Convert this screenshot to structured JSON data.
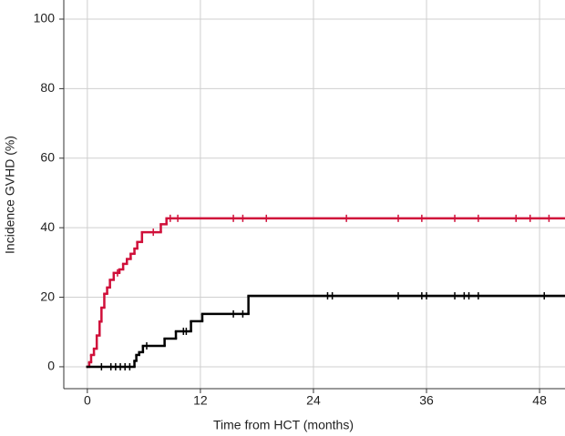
{
  "chart_data": {
    "type": "step",
    "x_label": "Time from HCT (months)",
    "y_label": "Incidence GVHD (%)",
    "xlim": [
      -2.5,
      50.7
    ],
    "ylim": [
      -6.3,
      105.5
    ],
    "xticks": [
      0,
      12,
      24,
      36,
      48
    ],
    "yticks": [
      0,
      20,
      40,
      60,
      80,
      100
    ],
    "grid": true,
    "series": [
      {
        "color": "#d0103a",
        "x": [
          0,
          0.2,
          0.4,
          0.7,
          1.0,
          1.3,
          1.5,
          1.8,
          2.1,
          2.4,
          2.8,
          3.4,
          3.8,
          4.2,
          4.6,
          5.0,
          5.3,
          5.8,
          7.8,
          8.4,
          50.7
        ],
        "values": [
          0,
          1.3,
          3.4,
          5.2,
          9,
          13,
          17,
          21,
          22.8,
          25,
          27,
          28,
          29.6,
          31,
          32.5,
          34,
          35.9,
          38.7,
          41,
          42.7,
          42.7
        ],
        "censored": {
          "x": [
            3.2,
            7.0,
            8.8,
            9.6,
            15.5,
            16.5,
            19,
            27.5,
            33,
            35.5,
            39,
            41.5,
            45.5,
            47,
            49
          ],
          "y": [
            27,
            38.7,
            42.7,
            42.7,
            42.7,
            42.7,
            42.7,
            42.7,
            42.7,
            42.7,
            42.7,
            42.7,
            42.7,
            42.7,
            42.7
          ]
        }
      },
      {
        "color": "#000000",
        "x": [
          0,
          5.0,
          5.2,
          5.5,
          5.9,
          8.2,
          9.4,
          11.0,
          12.2,
          17.1,
          50.7
        ],
        "values": [
          0,
          1.7,
          3.4,
          4.2,
          6.0,
          8.1,
          10.2,
          13.1,
          15.2,
          20.4,
          20.4
        ],
        "censored": {
          "x": [
            1.5,
            2.5,
            3.0,
            3.5,
            4.0,
            4.5,
            6.3,
            10.2,
            10.5,
            15.5,
            16.5,
            25.5,
            26,
            33,
            35.5,
            36,
            39,
            40,
            40.5,
            41.5,
            48.5
          ],
          "y": [
            0,
            0,
            0,
            0,
            0,
            0,
            6.0,
            10.2,
            10.2,
            15.2,
            15.2,
            20.4,
            20.4,
            20.4,
            20.4,
            20.4,
            20.4,
            20.4,
            20.4,
            20.4,
            20.4
          ]
        }
      }
    ]
  }
}
